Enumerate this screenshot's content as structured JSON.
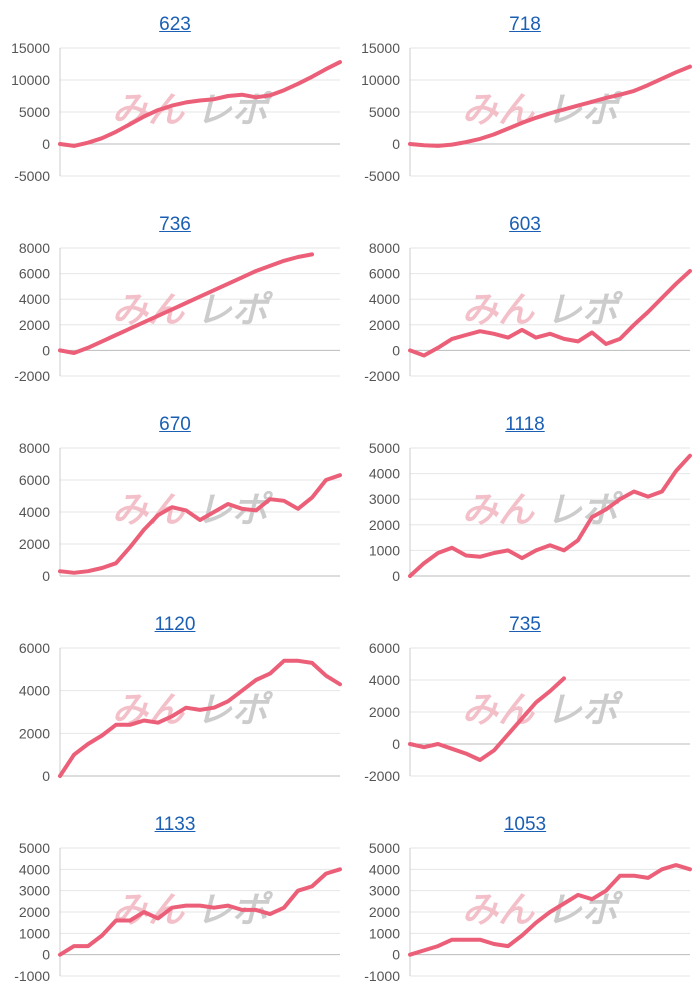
{
  "colors": {
    "line": "#ec5f78",
    "grid": "#e6e6e6",
    "axis": "#cccccc",
    "title": "#1a5fb4",
    "watermark_pink": "#f2b5bf",
    "watermark_gray": "#c4c4c4"
  },
  "watermark": {
    "part1": "みん",
    "part2": "レポ"
  },
  "chart_data": [
    {
      "type": "line",
      "title": "623",
      "ylim": [
        -5000,
        15000
      ],
      "yticks": [
        15000,
        10000,
        5000,
        0,
        -5000
      ],
      "x": [
        0,
        5,
        10,
        15,
        20,
        25,
        30,
        35,
        40,
        45,
        50,
        55,
        60,
        65,
        70,
        75,
        80,
        85,
        90,
        95,
        100
      ],
      "values": [
        0,
        -300,
        200,
        900,
        1900,
        3100,
        4300,
        5300,
        6000,
        6500,
        6800,
        7000,
        7500,
        7700,
        7300,
        7600,
        8400,
        9400,
        10500,
        11700,
        12800
      ]
    },
    {
      "type": "line",
      "title": "718",
      "ylim": [
        -5000,
        15000
      ],
      "yticks": [
        15000,
        10000,
        5000,
        0,
        -5000
      ],
      "x": [
        0,
        5,
        10,
        15,
        20,
        25,
        30,
        35,
        40,
        45,
        50,
        55,
        60,
        65,
        70,
        75,
        80,
        85,
        90,
        95,
        100
      ],
      "values": [
        0,
        -200,
        -300,
        -100,
        300,
        800,
        1500,
        2400,
        3300,
        4100,
        4800,
        5400,
        6000,
        6600,
        7200,
        7700,
        8300,
        9200,
        10200,
        11200,
        12100
      ]
    },
    {
      "type": "line",
      "title": "736",
      "ylim": [
        -2000,
        8000
      ],
      "yticks": [
        8000,
        6000,
        4000,
        2000,
        0,
        -2000
      ],
      "x": [
        0,
        5,
        10,
        15,
        20,
        25,
        30,
        35,
        40,
        45,
        50,
        55,
        60,
        65,
        70,
        75,
        80,
        85,
        90,
        95,
        100
      ],
      "values": [
        0,
        -200,
        200,
        700,
        1200,
        1700,
        2200,
        2700,
        3200,
        3700,
        4200,
        4700,
        5200,
        5700,
        6200,
        6600,
        7000,
        7300,
        7500,
        null,
        null
      ]
    },
    {
      "type": "line",
      "title": "603",
      "ylim": [
        -2000,
        8000
      ],
      "yticks": [
        8000,
        6000,
        4000,
        2000,
        0,
        -2000
      ],
      "x": [
        0,
        5,
        10,
        15,
        20,
        25,
        30,
        35,
        40,
        45,
        50,
        55,
        60,
        65,
        70,
        75,
        80,
        85,
        90,
        95,
        100
      ],
      "values": [
        0,
        -400,
        200,
        900,
        1200,
        1500,
        1300,
        1000,
        1600,
        1000,
        1300,
        900,
        700,
        1400,
        500,
        900,
        2000,
        3000,
        4100,
        5200,
        6200
      ]
    },
    {
      "type": "line",
      "title": "670",
      "ylim": [
        0,
        8000
      ],
      "yticks": [
        8000,
        6000,
        4000,
        2000,
        0
      ],
      "x": [
        0,
        5,
        10,
        15,
        20,
        25,
        30,
        35,
        40,
        45,
        50,
        55,
        60,
        65,
        70,
        75,
        80,
        85,
        90,
        95,
        100
      ],
      "values": [
        300,
        200,
        300,
        500,
        800,
        1800,
        2900,
        3800,
        4300,
        4100,
        3500,
        4000,
        4500,
        4200,
        4100,
        4800,
        4700,
        4200,
        4900,
        6000,
        6300
      ]
    },
    {
      "type": "line",
      "title": "1118",
      "ylim": [
        0,
        5000
      ],
      "yticks": [
        5000,
        4000,
        3000,
        2000,
        1000,
        0
      ],
      "x": [
        0,
        5,
        10,
        15,
        20,
        25,
        30,
        35,
        40,
        45,
        50,
        55,
        60,
        65,
        70,
        75,
        80,
        85,
        90,
        95,
        100
      ],
      "values": [
        0,
        500,
        900,
        1100,
        800,
        750,
        900,
        1000,
        700,
        1000,
        1200,
        1000,
        1400,
        2300,
        2600,
        3000,
        3300,
        3100,
        3300,
        4100,
        4700
      ]
    },
    {
      "type": "line",
      "title": "1120",
      "ylim": [
        0,
        6000
      ],
      "yticks": [
        6000,
        4000,
        2000,
        0
      ],
      "x": [
        0,
        5,
        10,
        15,
        20,
        25,
        30,
        35,
        40,
        45,
        50,
        55,
        60,
        65,
        70,
        75,
        80,
        85,
        90,
        95,
        100
      ],
      "values": [
        0,
        1000,
        1500,
        1900,
        2400,
        2400,
        2600,
        2500,
        2800,
        3200,
        3100,
        3200,
        3500,
        4000,
        4500,
        4800,
        5400,
        5400,
        5300,
        4700,
        4300
      ]
    },
    {
      "type": "line",
      "title": "735",
      "ylim": [
        -2000,
        6000
      ],
      "yticks": [
        6000,
        4000,
        2000,
        0,
        -2000
      ],
      "x": [
        0,
        5,
        10,
        15,
        20,
        25,
        30,
        35,
        40,
        45,
        50,
        55,
        60,
        65,
        70,
        75,
        80,
        85,
        90,
        95,
        100
      ],
      "values": [
        0,
        -200,
        0,
        -300,
        -600,
        -1000,
        -400,
        600,
        1600,
        2600,
        3300,
        4100,
        null,
        null,
        null,
        null,
        null,
        null,
        null,
        null,
        null
      ]
    },
    {
      "type": "line",
      "title": "1133",
      "ylim": [
        -1000,
        5000
      ],
      "yticks": [
        5000,
        4000,
        3000,
        2000,
        1000,
        0,
        -1000
      ],
      "x": [
        0,
        5,
        10,
        15,
        20,
        25,
        30,
        35,
        40,
        45,
        50,
        55,
        60,
        65,
        70,
        75,
        80,
        85,
        90,
        95,
        100
      ],
      "values": [
        0,
        400,
        400,
        900,
        1600,
        1600,
        2000,
        1700,
        2200,
        2300,
        2300,
        2200,
        2300,
        2100,
        2100,
        1900,
        2200,
        3000,
        3200,
        3800,
        4000
      ]
    },
    {
      "type": "line",
      "title": "1053",
      "ylim": [
        -1000,
        5000
      ],
      "yticks": [
        5000,
        4000,
        3000,
        2000,
        1000,
        0,
        -1000
      ],
      "x": [
        0,
        5,
        10,
        15,
        20,
        25,
        30,
        35,
        40,
        45,
        50,
        55,
        60,
        65,
        70,
        75,
        80,
        85,
        90,
        95,
        100
      ],
      "values": [
        0,
        200,
        400,
        700,
        700,
        700,
        500,
        400,
        900,
        1500,
        2000,
        2400,
        2800,
        2600,
        3000,
        3700,
        3700,
        3600,
        4000,
        4200,
        4000
      ]
    }
  ]
}
